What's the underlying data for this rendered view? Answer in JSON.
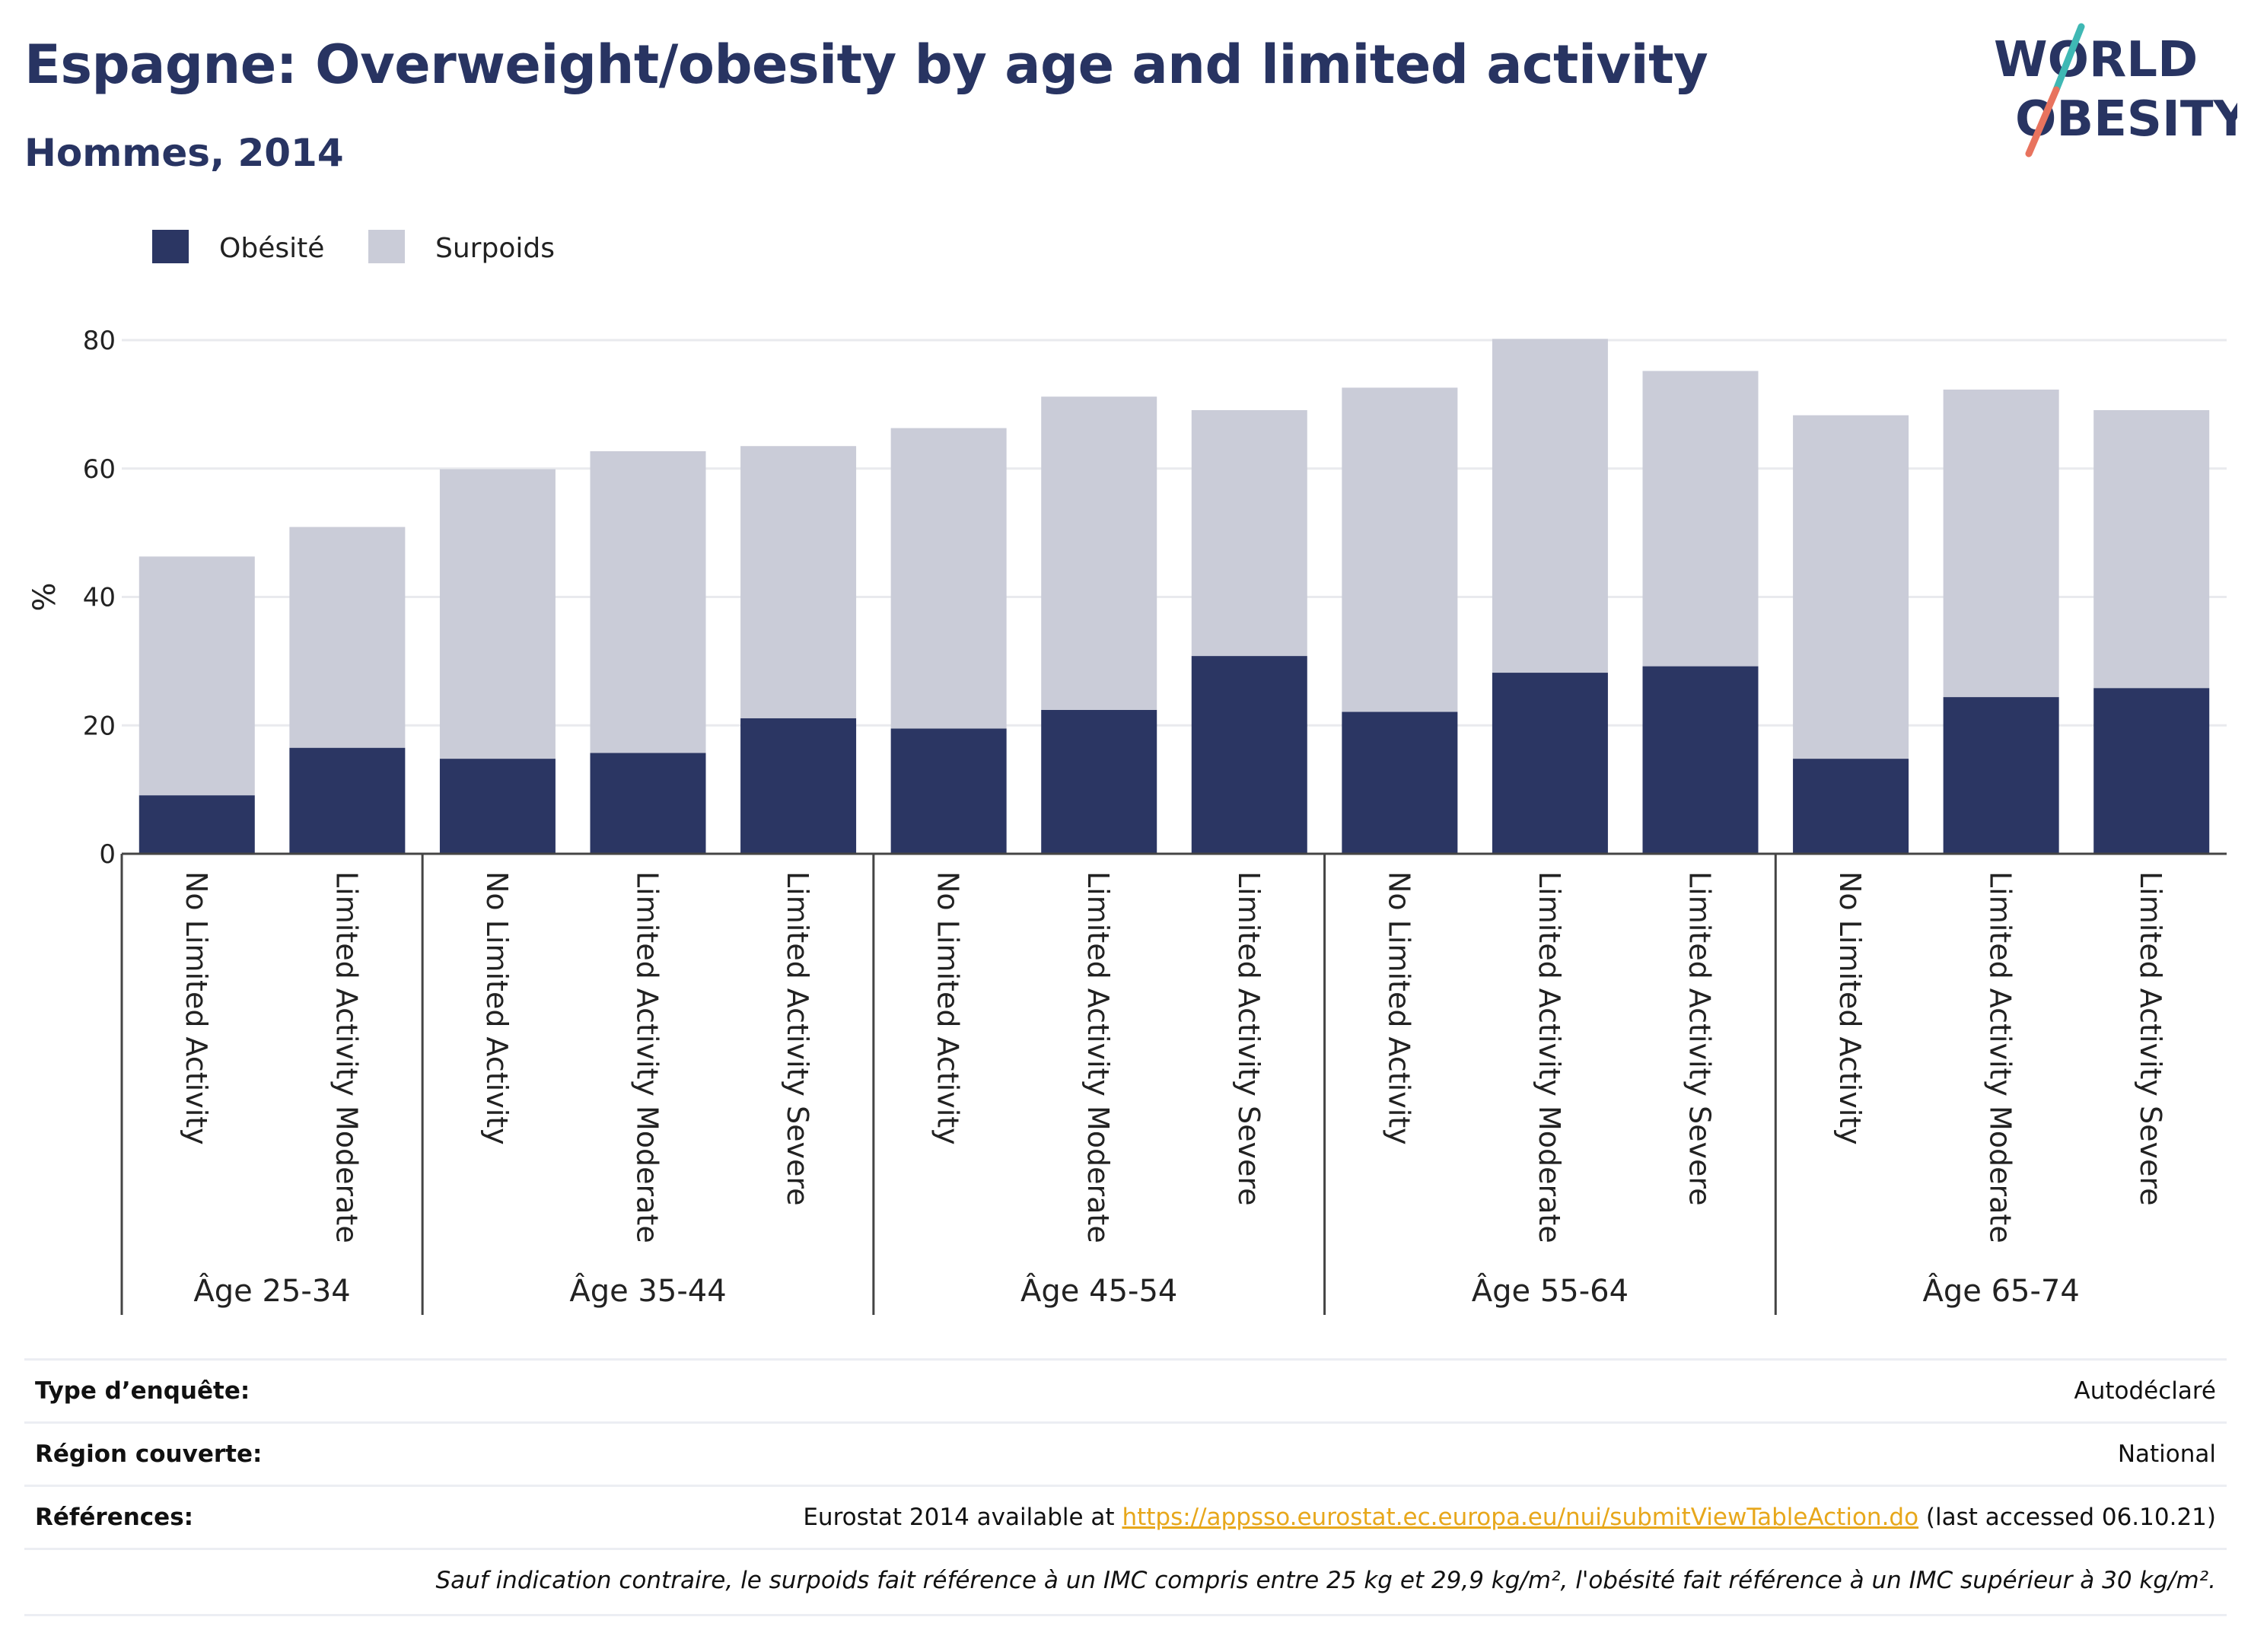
{
  "header": {
    "title": "Espagne: Overweight/obesity by age and limited activity",
    "subtitle": "Hommes, 2014",
    "logo_line1": "WORLD",
    "logo_line2": "OBESITY"
  },
  "colors": {
    "obesity": "#2b3663",
    "overweight": "#caccd8",
    "title": "#283462",
    "link": "#e7a71b",
    "logo_teal": "#3fb8b4",
    "logo_coral": "#e8735e"
  },
  "chart_data": {
    "type": "bar",
    "stacked": true,
    "ylabel": "%",
    "ylim": [
      0,
      80
    ],
    "yticks": [
      0,
      20,
      40,
      60,
      80
    ],
    "grid": true,
    "legend_position": "top-left",
    "groups": [
      {
        "label": "Âge 25-34",
        "categories": [
          "No Limited Activity",
          "Limited Activity Moderate"
        ]
      },
      {
        "label": "Âge 35-44",
        "categories": [
          "No Limited Activity",
          "Limited Activity Moderate",
          "Limited Activity Severe"
        ]
      },
      {
        "label": "Âge 45-54",
        "categories": [
          "No Limited Activity",
          "Limited Activity Moderate",
          "Limited Activity Severe"
        ]
      },
      {
        "label": "Âge 55-64",
        "categories": [
          "No Limited Activity",
          "Limited Activity Moderate",
          "Limited Activity Severe"
        ]
      },
      {
        "label": "Âge 65-74",
        "categories": [
          "No Limited Activity",
          "Limited Activity Moderate",
          "Limited Activity Severe"
        ]
      }
    ],
    "series": [
      {
        "name": "Obésité",
        "values": [
          9.1,
          16.5,
          14.8,
          15.7,
          21.1,
          19.5,
          22.4,
          30.8,
          22.1,
          28.2,
          29.2,
          14.8,
          24.4,
          25.8
        ]
      },
      {
        "name": "Surpoids",
        "values": [
          37.2,
          34.4,
          45.1,
          47.0,
          42.4,
          46.8,
          48.8,
          38.3,
          50.5,
          52.0,
          46.0,
          53.5,
          47.9,
          43.3
        ]
      }
    ]
  },
  "info": {
    "survey_label": "Type d’enquête:",
    "survey_value": "Autodéclaré",
    "region_label": "Région couverte:",
    "region_value": "National",
    "refs_label": "Références:",
    "refs_prefix": "Eurostat 2014 available at ",
    "refs_link": "https://appsso.eurostat.ec.europa.eu/nui/submitViewTableAction.do",
    "refs_suffix": " (last accessed 06.10.21)",
    "note": "Sauf indication contraire, le surpoids fait référence à un IMC compris entre 25 kg et 29,9 kg/m², l'obésité fait référence à un IMC supérieur à 30 kg/m²."
  }
}
